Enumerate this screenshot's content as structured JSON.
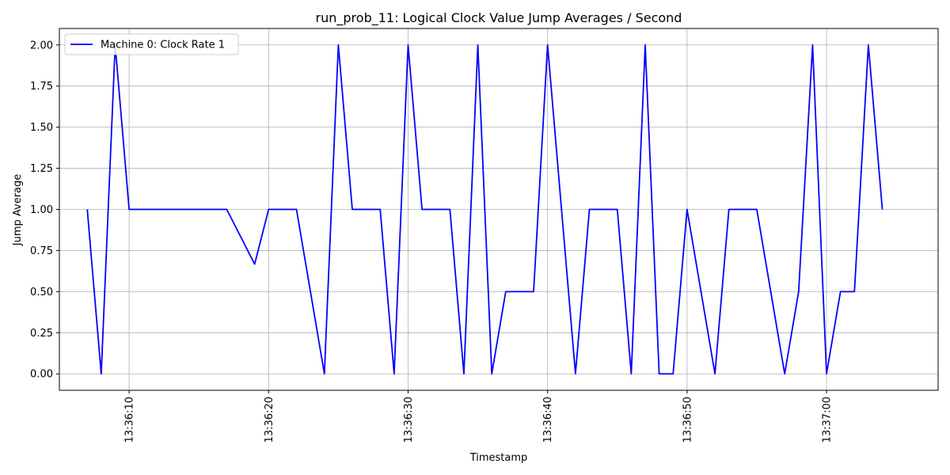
{
  "chart_data": {
    "type": "line",
    "title": "run_prob_11: Logical Clock Value Jump Averages / Second",
    "xlabel": "Timestamp",
    "ylabel": "Jump Average",
    "xlim": [
      "13:36:05",
      "13:37:08"
    ],
    "ylim": [
      -0.1,
      2.1
    ],
    "grid": true,
    "legend_position": "top-left",
    "x_ticks": [
      "13:36:10",
      "13:36:20",
      "13:36:30",
      "13:36:40",
      "13:36:50",
      "13:37:00"
    ],
    "y_ticks": [
      "0.00",
      "0.25",
      "0.50",
      "0.75",
      "1.00",
      "1.25",
      "1.50",
      "1.75",
      "2.00"
    ],
    "series": [
      {
        "name": "Machine 0: Clock Rate 1",
        "color": "#0000ff",
        "x": [
          "13:36:07",
          "13:36:08",
          "13:36:09",
          "13:36:10",
          "13:36:11",
          "13:36:12",
          "13:36:13",
          "13:36:14",
          "13:36:15",
          "13:36:16",
          "13:36:17",
          "13:36:19",
          "13:36:20",
          "13:36:21",
          "13:36:22",
          "13:36:24",
          "13:36:25",
          "13:36:26",
          "13:36:27",
          "13:36:28",
          "13:36:29",
          "13:36:30",
          "13:36:31",
          "13:36:32",
          "13:36:33",
          "13:36:34",
          "13:36:35",
          "13:36:36",
          "13:36:37",
          "13:36:38",
          "13:36:39",
          "13:36:40",
          "13:36:42",
          "13:36:43",
          "13:36:44",
          "13:36:45",
          "13:36:46",
          "13:36:47",
          "13:36:48",
          "13:36:49",
          "13:36:50",
          "13:36:52",
          "13:36:53",
          "13:36:54",
          "13:36:55",
          "13:36:57",
          "13:36:58",
          "13:36:59",
          "13:37:00",
          "13:37:01",
          "13:37:02",
          "13:37:03",
          "13:37:04"
        ],
        "y": [
          1.0,
          0.0,
          2.0,
          1.0,
          1.0,
          1.0,
          1.0,
          1.0,
          1.0,
          1.0,
          1.0,
          0.667,
          1.0,
          1.0,
          1.0,
          0.0,
          2.0,
          1.0,
          1.0,
          1.0,
          0.0,
          2.0,
          1.0,
          1.0,
          1.0,
          0.0,
          2.0,
          0.0,
          0.5,
          0.5,
          0.5,
          2.0,
          0.0,
          1.0,
          1.0,
          1.0,
          0.0,
          2.0,
          0.0,
          0.0,
          1.0,
          0.0,
          1.0,
          1.0,
          1.0,
          0.0,
          0.5,
          2.0,
          0.0,
          0.5,
          0.5,
          2.0,
          1.0
        ]
      }
    ]
  }
}
